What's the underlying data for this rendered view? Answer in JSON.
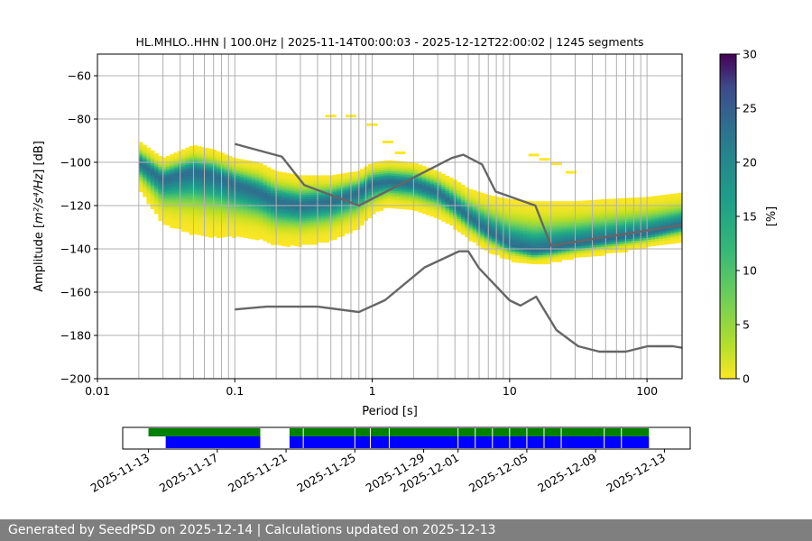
{
  "chart_data": [
    {
      "type": "heatmap",
      "title": "HL.MHLO..HHN | 100.0Hz | 2025-11-14T00:00:03 - 2025-12-12T22:00:02 | 1245 segments",
      "xlabel": "Period [s]",
      "ylabel_prefix": "Amplitude [",
      "ylabel_math": "m²/s⁴/Hz",
      "ylabel_suffix": "] [dB]",
      "xscale": "log",
      "xlim": [
        0.01,
        180
      ],
      "ylim": [
        -200,
        -50
      ],
      "xticks": [
        {
          "v": 0.01,
          "label": "0.01"
        },
        {
          "v": 0.1,
          "label": "0.1"
        },
        {
          "v": 1,
          "label": "1"
        },
        {
          "v": 10,
          "label": "10"
        },
        {
          "v": 100,
          "label": "100"
        }
      ],
      "yticks": [
        {
          "v": -60,
          "label": "−60"
        },
        {
          "v": -80,
          "label": "−80"
        },
        {
          "v": -100,
          "label": "−100"
        },
        {
          "v": -120,
          "label": "−120"
        },
        {
          "v": -140,
          "label": "−140"
        },
        {
          "v": -160,
          "label": "−160"
        },
        {
          "v": -180,
          "label": "−180"
        },
        {
          "v": -200,
          "label": "−200"
        }
      ],
      "grid": true,
      "colorbar": {
        "label": "[%]",
        "min": 0,
        "max": 30,
        "ticks": [
          0,
          5,
          10,
          15,
          20,
          25,
          30
        ],
        "colormap": "viridis_r"
      },
      "density_ridge": {
        "period": [
          0.02,
          0.03,
          0.05,
          0.07,
          0.1,
          0.15,
          0.2,
          0.3,
          0.5,
          0.8,
          1.0,
          1.3,
          2.0,
          3.0,
          4.0,
          5.0,
          7.0,
          10,
          15,
          20,
          30,
          50,
          100,
          180
        ],
        "mode_db": [
          -100,
          -108,
          -104,
          -106,
          -110,
          -114,
          -118,
          -120,
          -118,
          -114,
          -110,
          -109,
          -110,
          -114,
          -120,
          -125,
          -132,
          -138,
          -141,
          -140,
          -138,
          -136,
          -133,
          -129
        ],
        "upper_db": [
          -90,
          -98,
          -92,
          -94,
          -98,
          -100,
          -104,
          -106,
          -106,
          -104,
          -100,
          -99,
          -100,
          -104,
          -108,
          -112,
          -115,
          -117,
          -118,
          -118,
          -118,
          -117,
          -116,
          -114
        ],
        "lower_db": [
          -112,
          -128,
          -133,
          -134,
          -134,
          -135,
          -138,
          -138,
          -136,
          -130,
          -124,
          -120,
          -122,
          -125,
          -130,
          -135,
          -141,
          -145,
          -147,
          -146,
          -144,
          -142,
          -139,
          -136
        ]
      },
      "sparse_points": {
        "period": [
          0.5,
          0.7,
          1.0,
          1.3,
          1.6,
          15,
          18,
          22,
          28
        ],
        "db": [
          -78,
          -78,
          -82,
          -90,
          -95,
          -96,
          -98,
          -100,
          -104
        ]
      },
      "noise_models": [
        {
          "x": [
            0.1,
            0.22,
            0.32,
            0.8,
            3.8,
            4.6,
            6.3,
            7.9,
            15.4,
            20,
            354
          ],
          "y": [
            -91.5,
            -97.4,
            -110.5,
            -120,
            -98,
            -96.5,
            -101,
            -113.5,
            -120,
            -138.5,
            -126
          ]
        },
        {
          "x": [
            0.1,
            0.17,
            0.4,
            0.8,
            1.24,
            2.4,
            4.3,
            5.0,
            6.0,
            10,
            12,
            15.6,
            21.9,
            31.6,
            45,
            70,
            101,
            154,
            180
          ],
          "y": [
            -168,
            -166.7,
            -166.7,
            -169.2,
            -163.7,
            -148.6,
            -141.1,
            -141.1,
            -149.0,
            -163.8,
            -166.2,
            -162.1,
            -177.5,
            -185.0,
            -187.5,
            -187.5,
            -185.0,
            -185.0,
            -185.7
          ]
        }
      ],
      "model_color": "#666666",
      "vertical_grid_periods": [
        0.02,
        0.03,
        0.04,
        0.05,
        0.06,
        0.07,
        0.08,
        0.09,
        0.2,
        0.3,
        0.4,
        0.5,
        0.6,
        0.7,
        0.8,
        0.9,
        2,
        3,
        4,
        5,
        6,
        7,
        8,
        9,
        20,
        30,
        40,
        50,
        60,
        70,
        80,
        90
      ]
    },
    {
      "type": "timeline",
      "xticks": [
        {
          "day": 0,
          "label": "2025-11-13"
        },
        {
          "day": 4,
          "label": "2025-11-17"
        },
        {
          "day": 8,
          "label": "2025-11-21"
        },
        {
          "day": 12,
          "label": "2025-11-25"
        },
        {
          "day": 16,
          "label": "2025-11-29"
        },
        {
          "day": 18,
          "label": "2025-12-01"
        },
        {
          "day": 22,
          "label": "2025-12-05"
        },
        {
          "day": 26,
          "label": "2025-12-09"
        },
        {
          "day": 30,
          "label": "2025-12-13"
        }
      ],
      "xlim_days": [
        -1.5,
        31.5
      ],
      "data_available": {
        "color": "#008000",
        "spans": [
          [
            0,
            6.5
          ],
          [
            8.2,
            29.1
          ]
        ]
      },
      "psd_computed": {
        "color": "#0000ff",
        "spans": [
          [
            1.0,
            6.5
          ],
          [
            8.2,
            29.1
          ]
        ],
        "gaps": [
          9.0,
          12.0,
          12.9,
          14.0,
          18.0,
          19.0,
          20.0,
          21.0,
          22.0,
          23.0,
          24.0,
          26.5,
          27.5
        ]
      }
    }
  ],
  "footer": {
    "text": "Generated by SeedPSD on 2025-12-14 | Calculations updated on 2025-12-13"
  }
}
